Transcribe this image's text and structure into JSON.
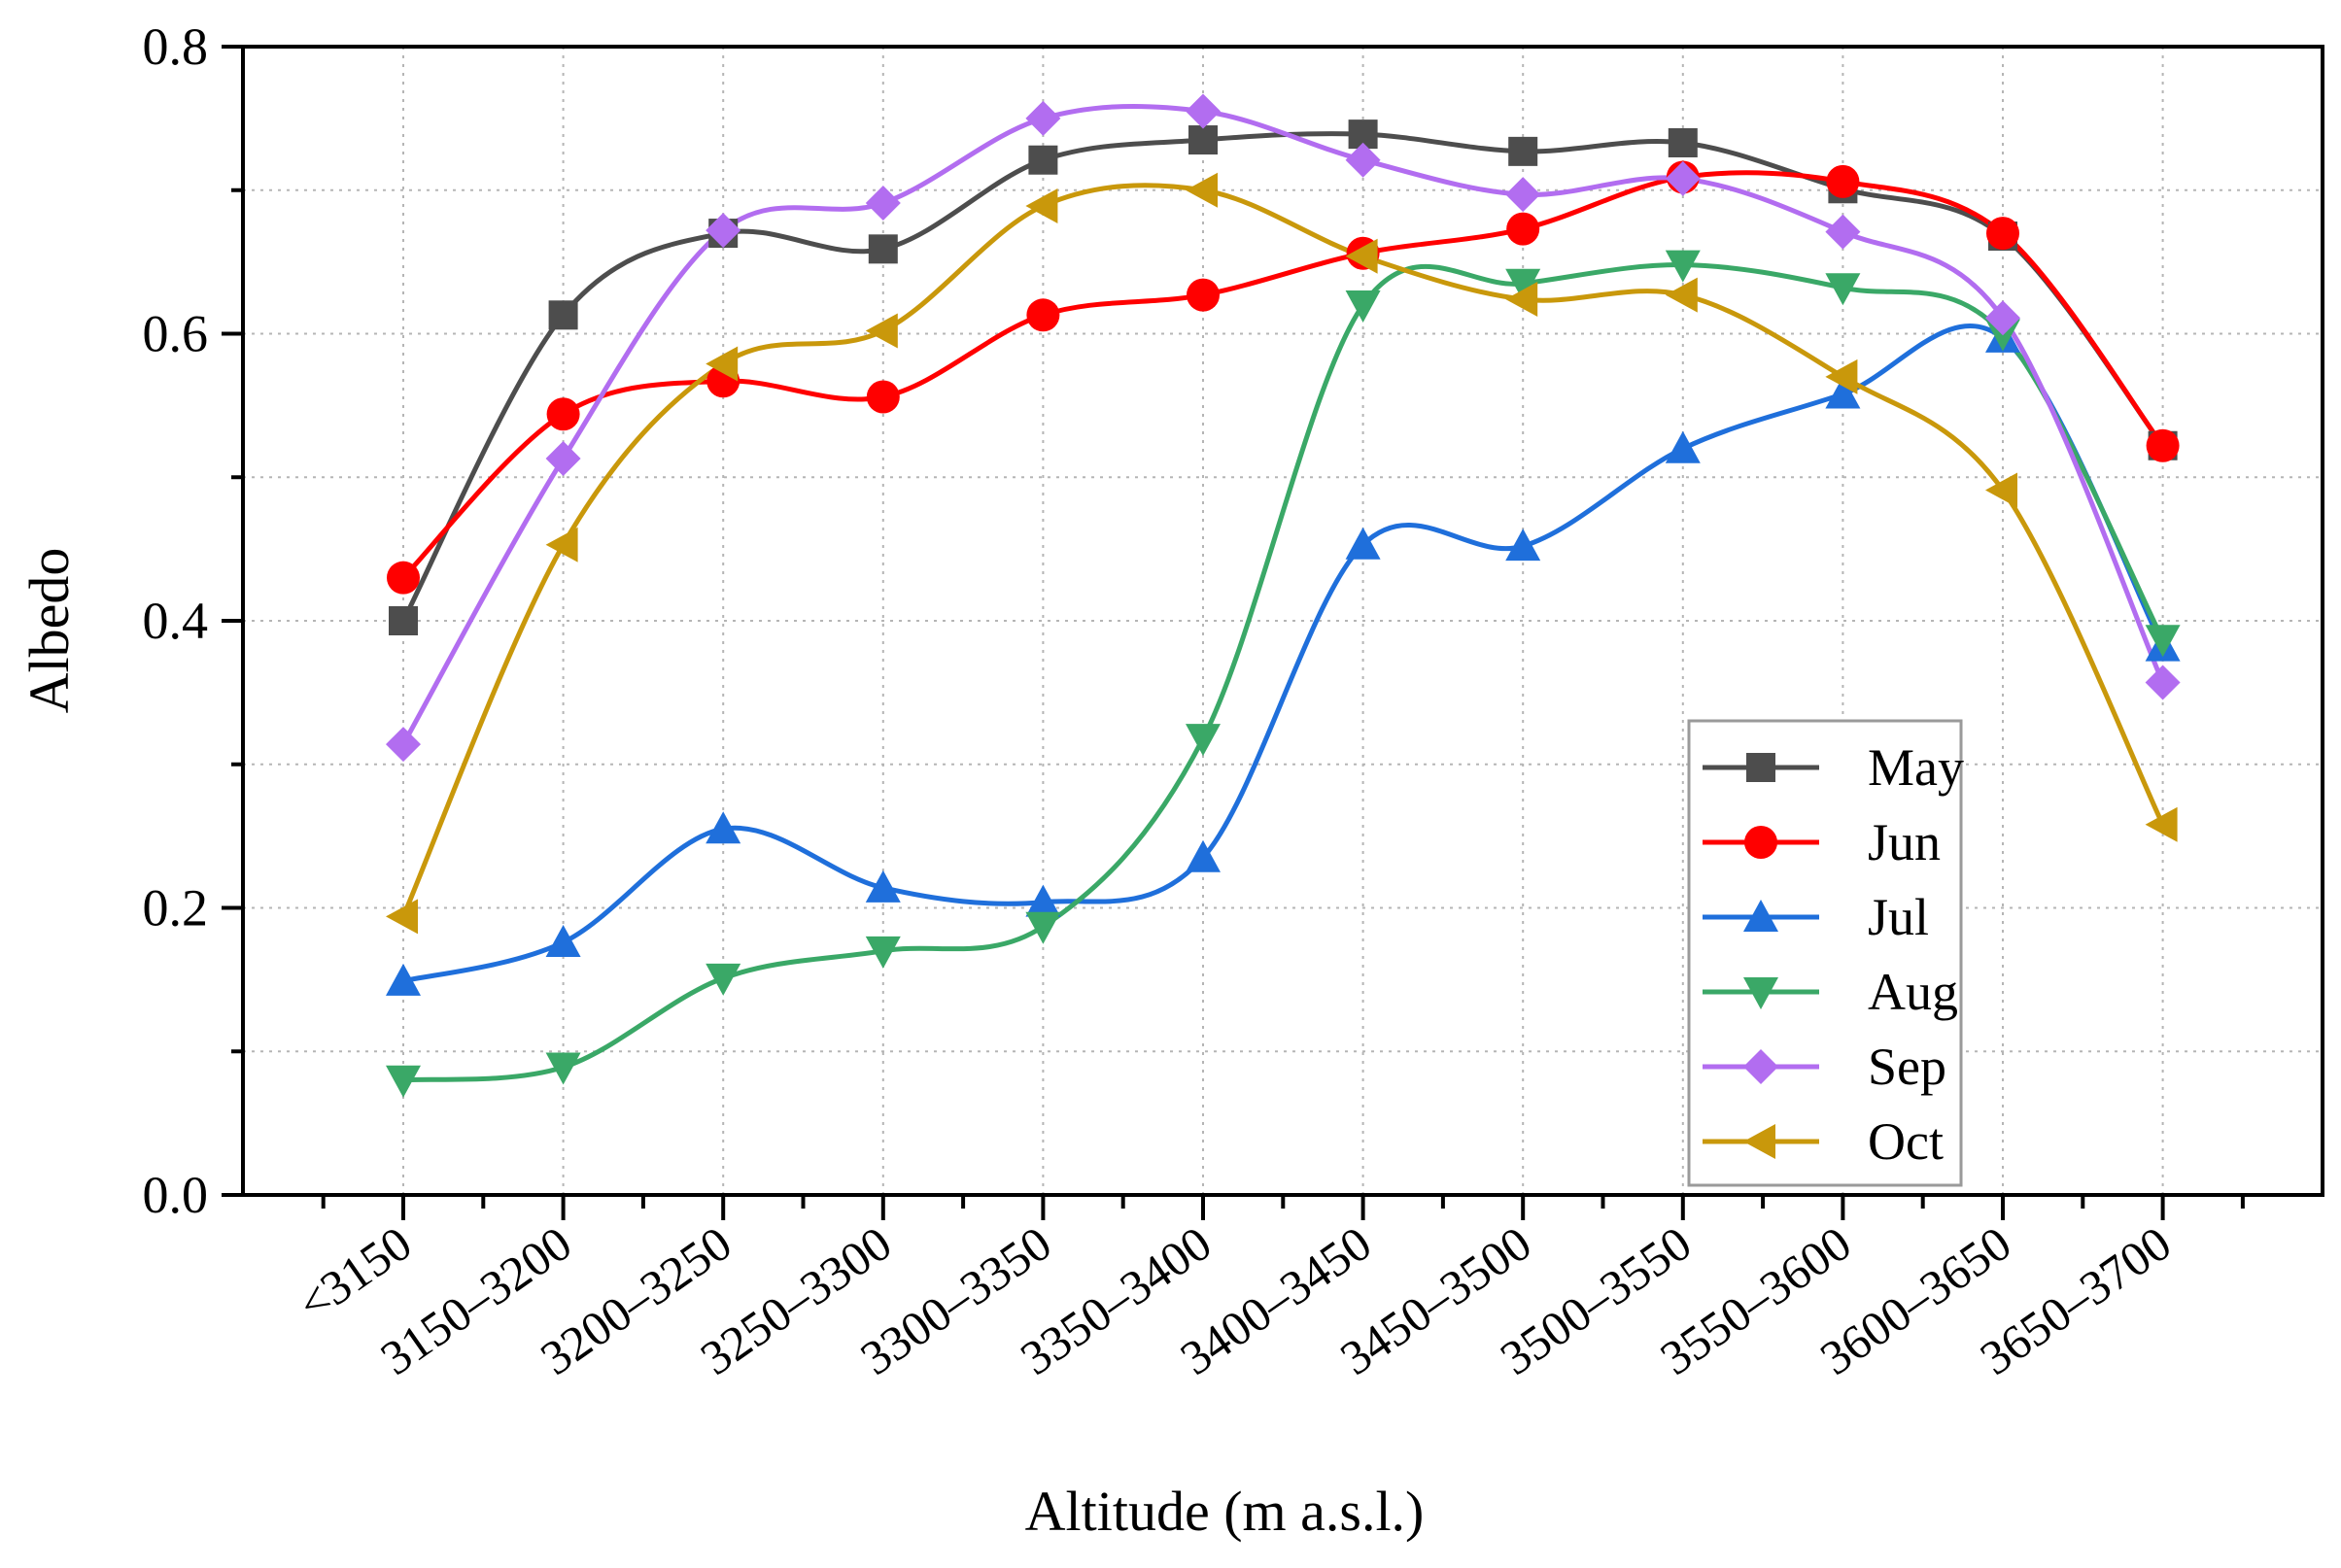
{
  "chart_data": {
    "type": "line",
    "title": "",
    "xlabel": "Altitude (m a.s.l.)",
    "ylabel": "Albedo",
    "ylim": [
      0.0,
      0.8
    ],
    "y_ticks": [
      "0.0",
      "0.2",
      "0.4",
      "0.6",
      "0.8"
    ],
    "grid": true,
    "legend_position": "bottom-right",
    "categories": [
      "<3150",
      "3150–3200",
      "3200–3250",
      "3250–3300",
      "3300–3350",
      "3350–3400",
      "3400–3450",
      "3450–3500",
      "3500–3550",
      "3550–3600",
      "3600–3650",
      "3650–3700"
    ],
    "series": [
      {
        "name": "May",
        "color": "#4d4d4d",
        "marker": "square",
        "values": [
          0.4,
          0.613,
          0.67,
          0.659,
          0.721,
          0.735,
          0.739,
          0.727,
          0.733,
          0.701,
          0.668,
          0.522
        ]
      },
      {
        "name": "Jun",
        "color": "#ff0000",
        "marker": "circle",
        "values": [
          0.43,
          0.544,
          0.567,
          0.556,
          0.613,
          0.627,
          0.656,
          0.673,
          0.709,
          0.706,
          0.67,
          0.522
        ]
      },
      {
        "name": "Jul",
        "color": "#1f6fdb",
        "marker": "triangle-up",
        "values": [
          0.149,
          0.176,
          0.255,
          0.214,
          0.204,
          0.235,
          0.453,
          0.452,
          0.52,
          0.558,
          0.597,
          0.382
        ]
      },
      {
        "name": "Aug",
        "color": "#3aa867",
        "marker": "triangle-down",
        "values": [
          0.08,
          0.089,
          0.151,
          0.17,
          0.187,
          0.318,
          0.62,
          0.635,
          0.648,
          0.632,
          0.6,
          0.387
        ]
      },
      {
        "name": "Sep",
        "color": "#b26df0",
        "marker": "diamond",
        "values": [
          0.314,
          0.513,
          0.672,
          0.691,
          0.75,
          0.755,
          0.721,
          0.697,
          0.708,
          0.671,
          0.611,
          0.357
        ]
      },
      {
        "name": "Oct",
        "color": "#c9980b",
        "marker": "triangle-left",
        "values": [
          0.194,
          0.453,
          0.579,
          0.602,
          0.689,
          0.7,
          0.654,
          0.624,
          0.627,
          0.57,
          0.491,
          0.258
        ]
      }
    ]
  }
}
